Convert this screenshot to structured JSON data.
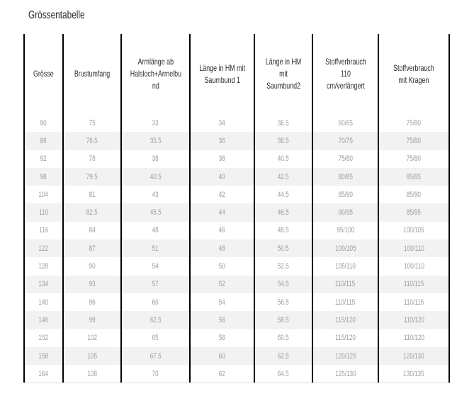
{
  "title": "Grössentabelle",
  "colors": {
    "header_text": "#2b2b2b",
    "data_text": "#989ca3",
    "stripe": "#f2f2f2",
    "line": "#000000"
  },
  "table": {
    "columns": [
      {
        "label": "Grösse"
      },
      {
        "label": "Brustumfang"
      },
      {
        "label": "Armlänge ab\nHalsloch+Armelbu\nnd"
      },
      {
        "label": "Länge in HM mit\nSaumbund 1"
      },
      {
        "label": "Länge in HM\nmit\nSaumbund2"
      },
      {
        "label": "Stoffverbrauch\n110\ncm/verlängert"
      },
      {
        "label": "Stoffverbrauch\nmit Kragen"
      }
    ],
    "rows": [
      [
        "80",
        "75",
        "33",
        "34",
        "36.5",
        "60/65",
        "75/80"
      ],
      [
        "86",
        "76.5",
        "35.5",
        "36",
        "38.5",
        "70/75",
        "75/80"
      ],
      [
        "92",
        "78",
        "38",
        "38",
        "40.5",
        "75/80",
        "75/80"
      ],
      [
        "98",
        "79.5",
        "40.5",
        "40",
        "42.5",
        "80/85",
        "85/85"
      ],
      [
        "104",
        "81",
        "43",
        "42",
        "44.5",
        "85/90",
        "85/90"
      ],
      [
        "110",
        "82.5",
        "45.5",
        "44",
        "46.5",
        "90/95",
        "85/95"
      ],
      [
        "116",
        "84",
        "48",
        "46",
        "48.5",
        "95/100",
        "100/105"
      ],
      [
        "122",
        "87",
        "51",
        "48",
        "50.5",
        "100/105",
        "100/110"
      ],
      [
        "128",
        "90",
        "54",
        "50",
        "52.5",
        "105/110",
        "100/110"
      ],
      [
        "134",
        "93",
        "57",
        "52",
        "54.5",
        "110/115",
        "110/115"
      ],
      [
        "140",
        "96",
        "60",
        "54",
        "56.5",
        "110/115",
        "110/115"
      ],
      [
        "146",
        "99",
        "62.5",
        "56",
        "58.5",
        "115/120",
        "110/120"
      ],
      [
        "152",
        "102",
        "65",
        "58",
        "60.5",
        "115/120",
        "110/120"
      ],
      [
        "158",
        "105",
        "67.5",
        "60",
        "62.5",
        "120/125",
        "120/130"
      ],
      [
        "164",
        "108",
        "70",
        "62",
        "64.5",
        "125/130",
        "130/135"
      ]
    ]
  }
}
